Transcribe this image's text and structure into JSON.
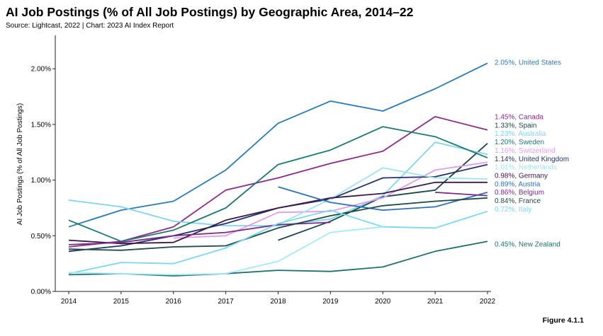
{
  "title": "AI Job Postings (% of All Job Postings) by Geographic Area, 2014–22",
  "source": "Source: Lightcast, 2022 | Chart: 2023 AI Index Report",
  "figure_label": "Figure 4.1.1",
  "chart_data": {
    "type": "line",
    "xlabel": "",
    "ylabel": "AI Job Postings (% of All Job Postings)",
    "x": [
      2014,
      2015,
      2016,
      2017,
      2018,
      2019,
      2020,
      2021,
      2022
    ],
    "ylim": [
      0,
      2.3
    ],
    "yticks": [
      0,
      0.5,
      1.0,
      1.5,
      2.0
    ],
    "ytick_labels": [
      "0.00%",
      "0.50%",
      "1.00%",
      "1.50%",
      "2.00%"
    ],
    "grid": false,
    "legend": "direct labels at right end of lines",
    "series": [
      {
        "name": "United States",
        "end_label": "2.05%, United States",
        "color": "#2a7ab8",
        "values": [
          0.58,
          0.73,
          0.81,
          1.09,
          1.51,
          1.71,
          1.62,
          1.82,
          2.05
        ]
      },
      {
        "name": "Canada",
        "end_label": "1.45%, Canada",
        "color": "#8b2a8c",
        "values": [
          0.4,
          0.45,
          0.58,
          0.91,
          1.02,
          1.15,
          1.26,
          1.57,
          1.45
        ]
      },
      {
        "name": "Spain",
        "end_label": "1.33%, Spain",
        "color": "#1a4a48",
        "values": [
          null,
          null,
          null,
          null,
          0.46,
          0.63,
          0.85,
          0.91,
          1.33
        ]
      },
      {
        "name": "Australia",
        "end_label": "1.23%, Australia",
        "color": "#7fd4ee",
        "values": [
          0.82,
          0.76,
          0.63,
          0.59,
          0.59,
          0.65,
          0.86,
          1.34,
          1.23
        ]
      },
      {
        "name": "Sweden",
        "end_label": "1.20%, Sweden",
        "color": "#1a7a72",
        "values": [
          0.64,
          0.45,
          0.55,
          0.75,
          1.14,
          1.27,
          1.48,
          1.39,
          1.2
        ]
      },
      {
        "name": "Switzerland",
        "end_label": "1.16%, Switzerland",
        "color": "#e29ce8",
        "values": [
          null,
          null,
          0.48,
          0.5,
          0.71,
          0.72,
          0.84,
          1.09,
          1.16
        ]
      },
      {
        "name": "United Kingdom",
        "end_label": "1.14%, United Kingdom",
        "color": "#22336b",
        "values": [
          0.36,
          0.41,
          0.5,
          0.61,
          0.75,
          0.83,
          1.02,
          1.03,
          1.14
        ]
      },
      {
        "name": "Netherlands",
        "end_label": "1.01%, Netherlands",
        "color": "#9ee4f2",
        "values": [
          null,
          null,
          null,
          null,
          0.6,
          0.83,
          1.11,
          1.02,
          1.01
        ]
      },
      {
        "name": "Germany",
        "end_label": "0.98%, Germany",
        "color": "#3b1a4a",
        "values": [
          0.46,
          0.43,
          0.44,
          0.64,
          0.75,
          0.84,
          0.88,
          0.98,
          0.98
        ]
      },
      {
        "name": "Austria",
        "end_label": "0.89%, Austria",
        "color": "#2d72b8",
        "values": [
          null,
          null,
          null,
          null,
          0.94,
          0.8,
          0.73,
          0.76,
          0.89
        ]
      },
      {
        "name": "Belgium",
        "end_label": "0.86%, Belgium",
        "color": "#7d2a88",
        "values": [
          0.42,
          0.44,
          0.5,
          0.53,
          0.6,
          0.62,
          null,
          0.89,
          0.86
        ]
      },
      {
        "name": "France",
        "end_label": "0.84%, France",
        "color": "#1f4c48",
        "values": [
          0.38,
          0.37,
          0.4,
          0.41,
          0.57,
          0.68,
          0.77,
          0.81,
          0.84
        ]
      },
      {
        "name": "Italy",
        "end_label": "0.72%, Italy",
        "color": "#7ad8f2",
        "values": [
          0.16,
          0.26,
          0.25,
          0.39,
          0.61,
          0.73,
          0.58,
          0.57,
          0.72
        ]
      },
      {
        "name": "New Zealand",
        "end_label": "0.45%, New Zealand",
        "color": "#1c706e",
        "values": [
          0.15,
          0.16,
          0.14,
          0.16,
          0.19,
          0.18,
          0.22,
          0.36,
          0.45
        ]
      },
      {
        "name": "",
        "end_label": "",
        "color": "#a6e8f6",
        "values": [
          0.17,
          0.16,
          0.15,
          0.16,
          0.27,
          0.53,
          0.58,
          null,
          null
        ]
      }
    ]
  }
}
